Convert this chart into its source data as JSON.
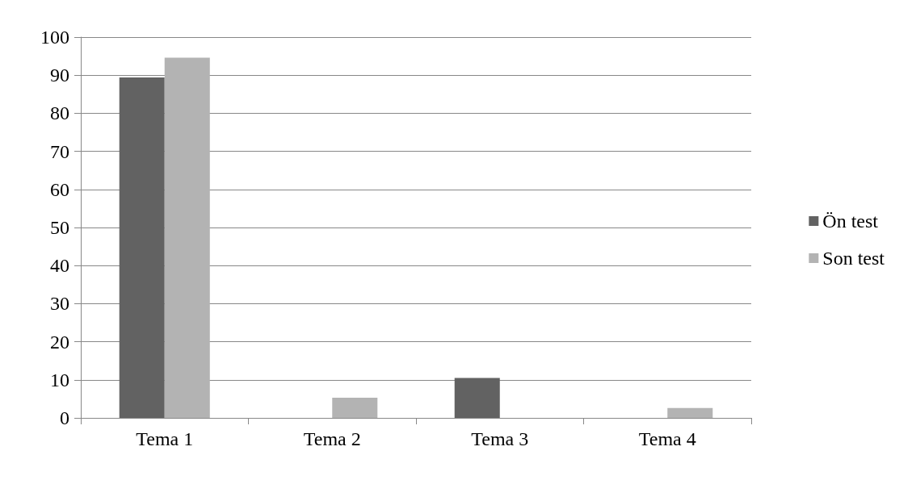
{
  "chart_data": {
    "type": "bar",
    "categories": [
      "Tema 1",
      "Tema 2",
      "Tema 3",
      "Tema 4"
    ],
    "series": [
      {
        "name": "Ön test",
        "color": "#626262",
        "values": [
          89.4,
          0,
          10.5,
          0
        ]
      },
      {
        "name": "Son test",
        "color": "#b3b3b3",
        "values": [
          94.6,
          5.3,
          0,
          2.6
        ]
      }
    ],
    "ylim": [
      0,
      100
    ],
    "yticks": [
      0,
      10,
      20,
      30,
      40,
      50,
      60,
      70,
      80,
      90,
      100
    ],
    "grid": "y",
    "legend": "right"
  }
}
